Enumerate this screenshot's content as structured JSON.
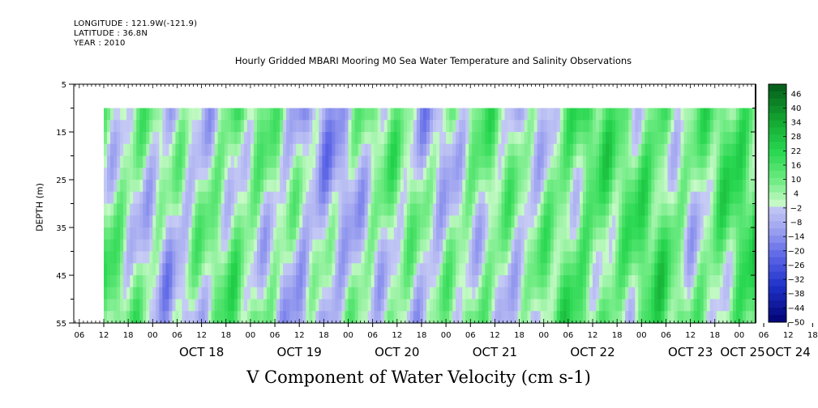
{
  "meta": {
    "longitude": "LONGITUDE : 121.9W(-121.9)",
    "latitude": "LATITUDE : 36.8N",
    "year": "YEAR : 2010"
  },
  "chart_data": {
    "type": "heatmap",
    "title": "Hourly Gridded MBARI Mooring M0 Sea Water Temperature and Salinity Observations",
    "xlabel": "V Component of Water Velocity (cm s-1)",
    "ylabel": "DEPTH (m)",
    "ylim": [
      55,
      5
    ],
    "y_ticks": [
      5,
      15,
      25,
      35,
      45,
      55
    ],
    "x_hour_ticks": [
      "06",
      "12",
      "18",
      "00",
      "06",
      "12",
      "18",
      "00",
      "06",
      "12",
      "18",
      "00",
      "06",
      "12",
      "18",
      "00",
      "06",
      "12",
      "18",
      "00",
      "06",
      "12",
      "18",
      "00",
      "06",
      "12",
      "18",
      "00",
      "06",
      "12",
      "18",
      "00"
    ],
    "x_day_labels": [
      "OCT 18",
      "OCT 19",
      "OCT 20",
      "OCT 21",
      "OCT 22",
      "OCT 23",
      "OCT 24",
      "OCT 25"
    ],
    "data_depth_range": [
      10,
      55
    ],
    "colorbar": {
      "ticks": [
        46,
        40,
        34,
        28,
        22,
        16,
        10,
        4,
        -2,
        -8,
        -14,
        -20,
        -26,
        -32,
        -38,
        -44,
        -50
      ],
      "range": [
        -50,
        50
      ],
      "step": 3
    },
    "column_profiles": [
      {
        "x": 0,
        "mean": 8
      },
      {
        "x": 0.05,
        "mean": 4
      },
      {
        "x": 0.1,
        "mean": -3
      },
      {
        "x": 0.15,
        "mean": 2
      },
      {
        "x": 0.2,
        "mean": 9
      },
      {
        "x": 0.26,
        "mean": 3
      },
      {
        "x": 0.3,
        "mean": -4
      },
      {
        "x": 0.35,
        "mean": -6
      },
      {
        "x": 0.4,
        "mean": 2
      },
      {
        "x": 0.45,
        "mean": 6
      },
      {
        "x": 0.5,
        "mean": -3
      },
      {
        "x": 0.55,
        "mean": 4
      },
      {
        "x": 0.6,
        "mean": 7
      },
      {
        "x": 0.65,
        "mean": -2
      },
      {
        "x": 0.7,
        "mean": 10
      },
      {
        "x": 0.75,
        "mean": 13
      },
      {
        "x": 0.8,
        "mean": 8
      },
      {
        "x": 0.85,
        "mean": 14
      },
      {
        "x": 0.9,
        "mean": 3
      },
      {
        "x": 0.95,
        "mean": 11
      },
      {
        "x": 1,
        "mean": 15
      }
    ]
  }
}
